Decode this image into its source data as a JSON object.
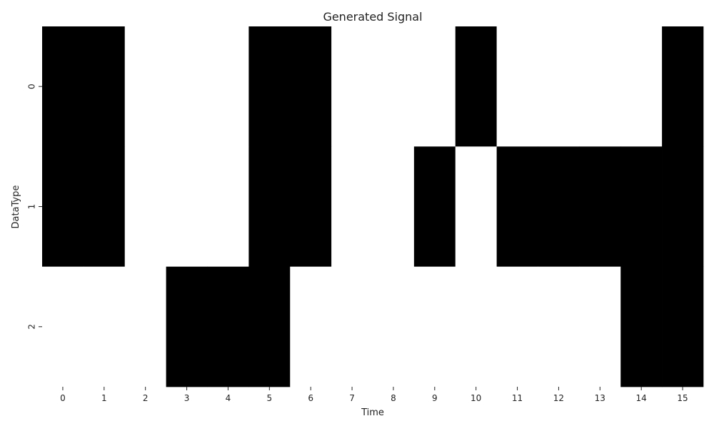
{
  "chart_data": {
    "type": "heatmap",
    "title": "Generated Signal",
    "xlabel": "Time",
    "ylabel": "DataType",
    "x_categories": [
      "0",
      "1",
      "2",
      "3",
      "4",
      "5",
      "6",
      "7",
      "8",
      "9",
      "10",
      "11",
      "12",
      "13",
      "14",
      "15"
    ],
    "y_categories": [
      "0",
      "1",
      "2"
    ],
    "values": [
      [
        1,
        1,
        0,
        0,
        0,
        1,
        1,
        0,
        0,
        0,
        1,
        0,
        0,
        0,
        0,
        1
      ],
      [
        1,
        1,
        0,
        0,
        0,
        1,
        1,
        0,
        0,
        1,
        0,
        1,
        1,
        1,
        1,
        1
      ],
      [
        0,
        0,
        0,
        1,
        1,
        1,
        0,
        0,
        0,
        0,
        0,
        0,
        0,
        0,
        1,
        1
      ]
    ],
    "colormap": {
      "0": "#ffffff",
      "1": "#000000"
    },
    "colorbar": false,
    "grid": false
  }
}
